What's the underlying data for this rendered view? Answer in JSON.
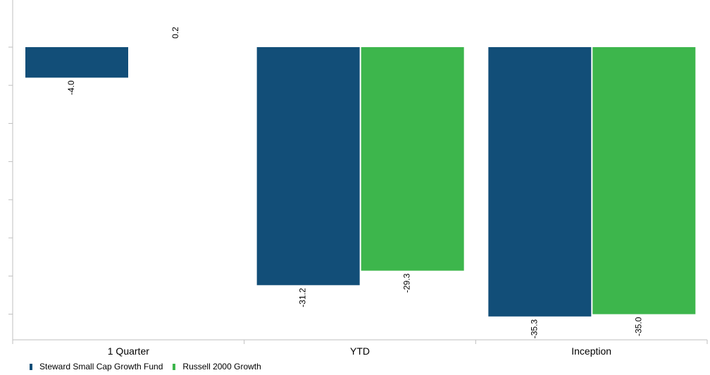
{
  "chart_data": {
    "type": "bar",
    "categories": [
      "1 Quarter",
      "YTD",
      "Inception"
    ],
    "series": [
      {
        "name": "Steward Small Cap Growth Fund",
        "color": "#124e78",
        "values": [
          -4.0,
          -31.2,
          -35.3
        ],
        "labels": [
          "-4.0",
          "-31.2",
          "-35.3"
        ]
      },
      {
        "name": "Russell 2000 Growth",
        "color": "#3db64c",
        "values": [
          0.2,
          -29.3,
          -35.0
        ],
        "labels": [
          "0.2",
          "-29.3",
          "-35.0"
        ]
      }
    ],
    "ylim": [
      -37,
      5
    ],
    "grid": false,
    "legend_position": "bottom-left"
  }
}
